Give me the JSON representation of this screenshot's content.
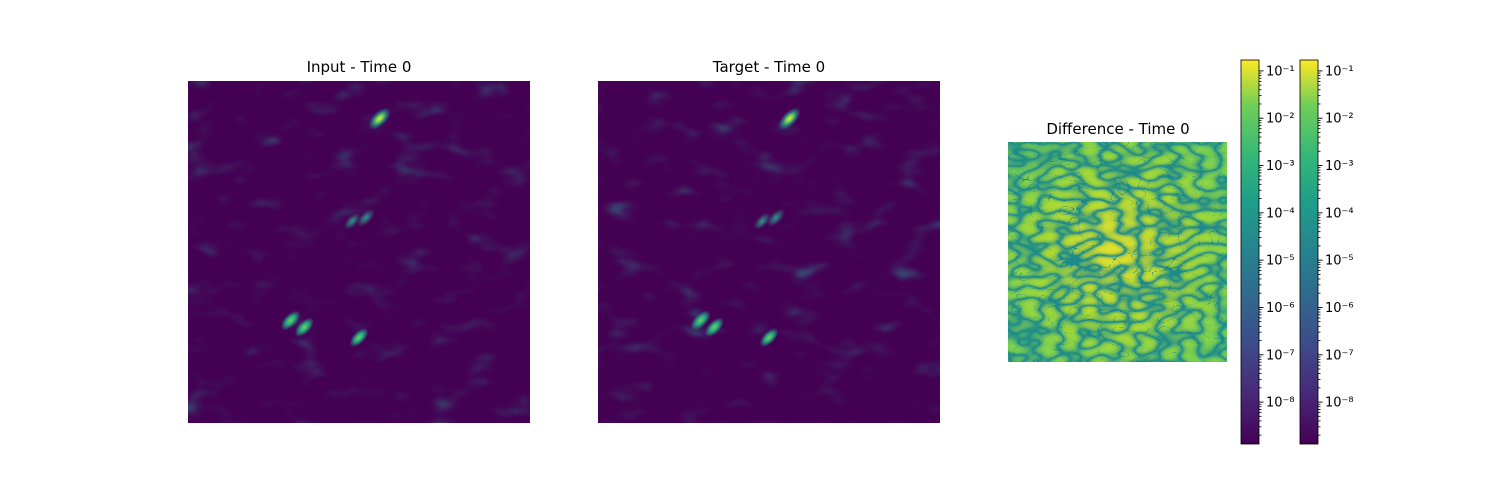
{
  "panels": [
    {
      "title": "Input - Time 0"
    },
    {
      "title": "Target - Time 0"
    },
    {
      "title": "Difference - Time 0"
    }
  ],
  "colormap": "viridis",
  "colors": {
    "low": "#440154",
    "mid": "#21918c",
    "high": "#fde725"
  },
  "chart_data": [
    {
      "type": "heatmap",
      "title": "Input - Time 0",
      "colormap": "viridis",
      "axes": "off",
      "bright_spots": [
        {
          "x": 0.56,
          "y": 0.11,
          "intensity": 1.0
        },
        {
          "x": 0.3,
          "y": 0.7,
          "intensity": 0.75
        },
        {
          "x": 0.34,
          "y": 0.72,
          "intensity": 0.7
        },
        {
          "x": 0.5,
          "y": 0.75,
          "intensity": 0.65
        },
        {
          "x": 0.52,
          "y": 0.4,
          "intensity": 0.55
        },
        {
          "x": 0.48,
          "y": 0.41,
          "intensity": 0.45
        }
      ]
    },
    {
      "type": "heatmap",
      "title": "Target - Time 0",
      "colormap": "viridis",
      "axes": "off",
      "bright_spots": [
        {
          "x": 0.56,
          "y": 0.11,
          "intensity": 1.0
        },
        {
          "x": 0.3,
          "y": 0.7,
          "intensity": 0.75
        },
        {
          "x": 0.34,
          "y": 0.72,
          "intensity": 0.7
        },
        {
          "x": 0.5,
          "y": 0.75,
          "intensity": 0.65
        },
        {
          "x": 0.52,
          "y": 0.4,
          "intensity": 0.55
        },
        {
          "x": 0.48,
          "y": 0.41,
          "intensity": 0.45
        }
      ]
    },
    {
      "type": "heatmap",
      "title": "Difference - Time 0",
      "colormap": "viridis",
      "scale": "log",
      "axes": "off",
      "value_range": [
        1e-09,
        0.2
      ]
    }
  ],
  "colorbars": [
    {
      "scale": "log",
      "range": [
        1.3e-09,
        0.17
      ],
      "ticks": [
        {
          "value": 1e-08,
          "label": "10⁻⁸"
        },
        {
          "value": 1e-07,
          "label": "10⁻⁷"
        },
        {
          "value": 1e-06,
          "label": "10⁻⁶"
        },
        {
          "value": 1e-05,
          "label": "10⁻⁵"
        },
        {
          "value": 0.0001,
          "label": "10⁻⁴"
        },
        {
          "value": 0.001,
          "label": "10⁻³"
        },
        {
          "value": 0.01,
          "label": "10⁻²"
        },
        {
          "value": 0.1,
          "label": "10⁻¹"
        }
      ]
    },
    {
      "scale": "log",
      "range": [
        1.3e-09,
        0.17
      ],
      "ticks": [
        {
          "value": 1e-08,
          "label": "10⁻⁸"
        },
        {
          "value": 1e-07,
          "label": "10⁻⁷"
        },
        {
          "value": 1e-06,
          "label": "10⁻⁶"
        },
        {
          "value": 1e-05,
          "label": "10⁻⁵"
        },
        {
          "value": 0.0001,
          "label": "10⁻⁴"
        },
        {
          "value": 0.001,
          "label": "10⁻³"
        },
        {
          "value": 0.01,
          "label": "10⁻²"
        },
        {
          "value": 0.1,
          "label": "10⁻¹"
        }
      ]
    }
  ]
}
